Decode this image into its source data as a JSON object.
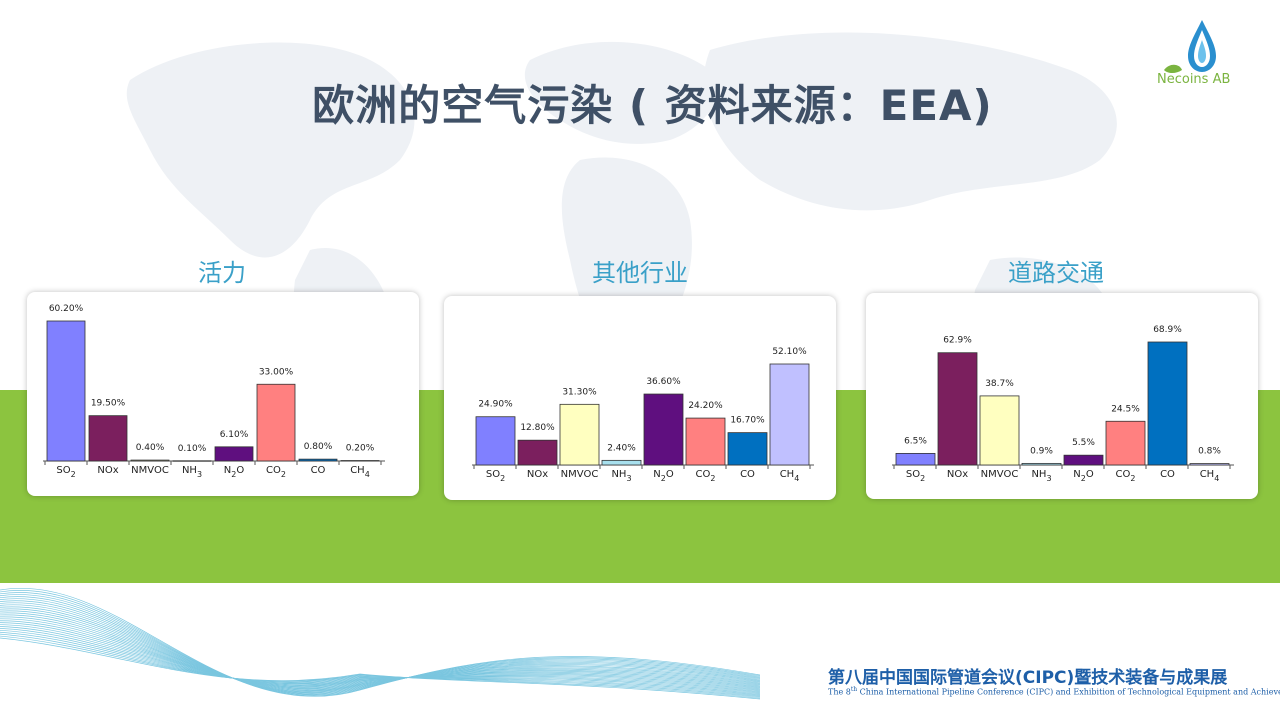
{
  "page": {
    "title": "欧洲的空气污染 ( 资料来源：EEA)",
    "logo_text": "Necoins AB",
    "footer_cn": "第八届中国国际管道会议(CIPC)暨技术装备与成果展",
    "footer_en_prefix": "The 8",
    "footer_en_sup": "th",
    "footer_en_rest": " China International Pipeline Conference (CIPC) and Exhibition of Technological Equipment and Achievements",
    "colors": {
      "green_band": "#8cc43f",
      "title": "#3f5066",
      "chart_title": "#3aa0c8",
      "footer": "#1e5fa8"
    }
  },
  "chart_data": [
    {
      "type": "bar",
      "title": "活力",
      "categories": [
        {
          "base": "SO",
          "sub": "2"
        },
        {
          "base": "NOx",
          "sub": ""
        },
        {
          "base": "NMVOC",
          "sub": ""
        },
        {
          "base": "NH",
          "sub": "3"
        },
        {
          "base": "N",
          "sub": "2",
          "tail": "O"
        },
        {
          "base": "CO",
          "sub": "2"
        },
        {
          "base": "CO",
          "sub": ""
        },
        {
          "base": "CH",
          "sub": "4"
        }
      ],
      "values": [
        60.2,
        19.5,
        0.4,
        0.1,
        6.1,
        33.0,
        0.8,
        0.2
      ],
      "labels": [
        "60.20%",
        "19.50%",
        "0.40%",
        "0.10%",
        "6.10%",
        "33.00%",
        "0.80%",
        "0.20%"
      ],
      "colors": [
        "#8080ff",
        "#7b1f5e",
        "#ffffc0",
        "#a8e0ee",
        "#5f0f7f",
        "#ff8080",
        "#0070c0",
        "#c0c0ff"
      ],
      "ylim": [
        0,
        65
      ]
    },
    {
      "type": "bar",
      "title": "其他行业",
      "categories": [
        {
          "base": "SO",
          "sub": "2"
        },
        {
          "base": "NOx",
          "sub": ""
        },
        {
          "base": "NMVOC",
          "sub": ""
        },
        {
          "base": "NH",
          "sub": "3"
        },
        {
          "base": "N",
          "sub": "2",
          "tail": "O"
        },
        {
          "base": "CO",
          "sub": "2"
        },
        {
          "base": "CO",
          "sub": ""
        },
        {
          "base": "CH",
          "sub": "4"
        }
      ],
      "values": [
        24.9,
        12.8,
        31.3,
        2.4,
        36.6,
        24.2,
        16.7,
        52.1
      ],
      "labels": [
        "24.90%",
        "12.80%",
        "31.30%",
        "2.40%",
        "36.60%",
        "24.20%",
        "16.70%",
        "52.10%"
      ],
      "colors": [
        "#8080ff",
        "#7b1f5e",
        "#ffffc0",
        "#a8e0ee",
        "#5f0f7f",
        "#ff8080",
        "#0070c0",
        "#c0c0ff"
      ],
      "ylim": [
        0,
        55
      ]
    },
    {
      "type": "bar",
      "title": "道路交通",
      "categories": [
        {
          "base": "SO",
          "sub": "2"
        },
        {
          "base": "NOx",
          "sub": ""
        },
        {
          "base": "NMVOC",
          "sub": ""
        },
        {
          "base": "NH",
          "sub": "3"
        },
        {
          "base": "N",
          "sub": "2",
          "tail": "O"
        },
        {
          "base": "CO",
          "sub": "2"
        },
        {
          "base": "CO",
          "sub": ""
        },
        {
          "base": "CH",
          "sub": "4"
        }
      ],
      "values": [
        6.5,
        62.9,
        38.7,
        0.9,
        5.5,
        24.5,
        68.9,
        0.8
      ],
      "labels": [
        "6.5%",
        "62.9%",
        "38.7%",
        "0.9%",
        "5.5%",
        "24.5%",
        "68.9%",
        "0.8%"
      ],
      "colors": [
        "#8080ff",
        "#7b1f5e",
        "#ffffc0",
        "#a8e0ee",
        "#5f0f7f",
        "#ff8080",
        "#0070c0",
        "#c0c0ff"
      ],
      "ylim": [
        0,
        72
      ]
    }
  ]
}
